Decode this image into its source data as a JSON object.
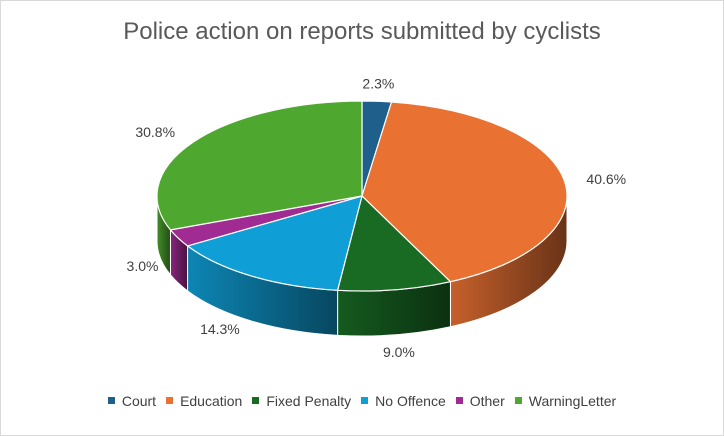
{
  "chart_data": {
    "type": "pie",
    "title": "Police action on reports submitted by cyclists",
    "categories": [
      "Court",
      "Education",
      "Fixed Penalty",
      "No Offence",
      "Other",
      "Warning Letter"
    ],
    "values": [
      2.3,
      40.6,
      9.0,
      14.3,
      3.0,
      30.8
    ],
    "labels": [
      "2.3%",
      "40.6%",
      "9.0%",
      "14.3%",
      "3.0%",
      "30.8%"
    ],
    "legend_labels": [
      "Court",
      "Education",
      "Fixed Penalty",
      "No Offence",
      "Other",
      "WarningLetter"
    ],
    "colors": [
      "#1f5f8b",
      "#e97132",
      "#196b24",
      "#0f9ed5",
      "#a02b93",
      "#4ea72e"
    ],
    "legend_position": "bottom",
    "style": "3d"
  }
}
